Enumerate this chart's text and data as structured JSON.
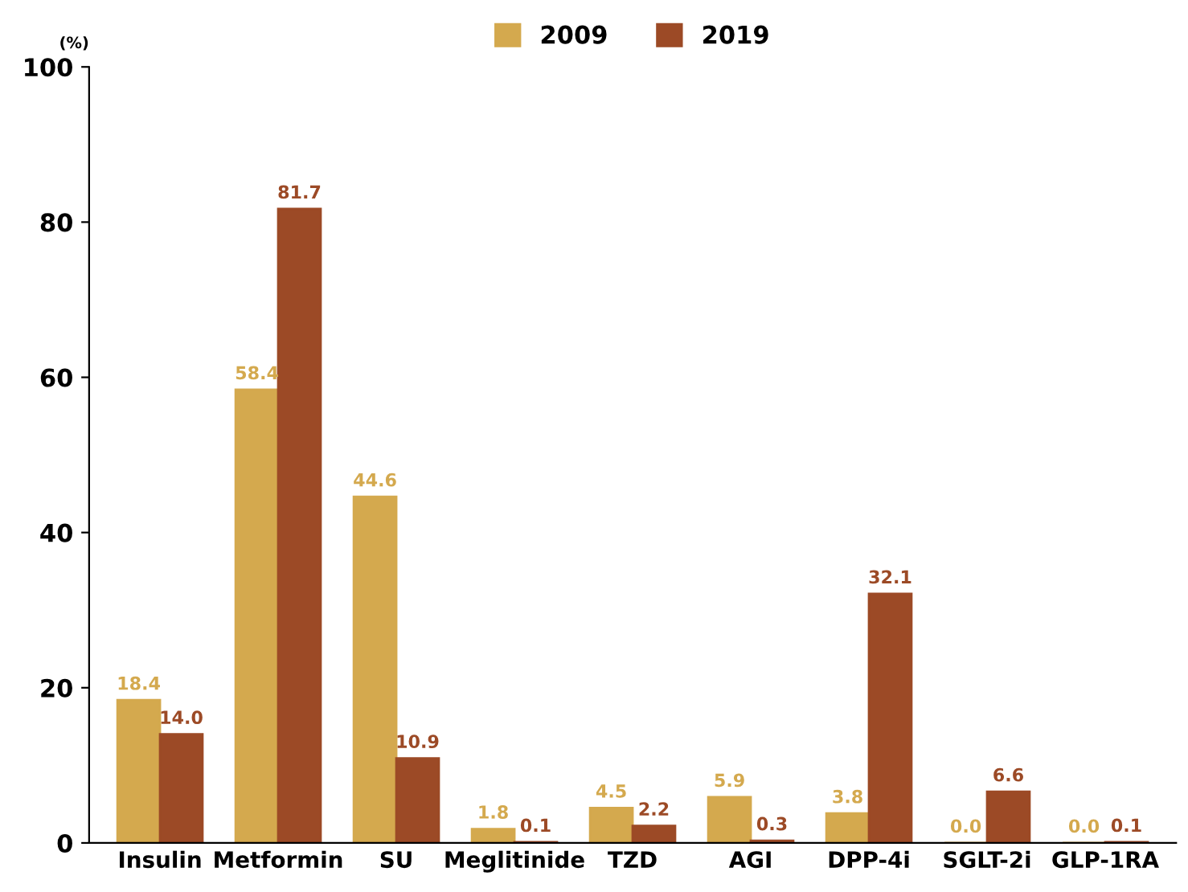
{
  "chart_data": {
    "type": "bar",
    "ylabel": "(%)",
    "categories": [
      "Insulin",
      "Metformin",
      "SU",
      "Meglitinide",
      "TZD",
      "AGI",
      "DPP-4i",
      "SGLT-2i",
      "GLP-1RA"
    ],
    "series": [
      {
        "name": "2009",
        "color": "#d4a94e",
        "values": [
          18.4,
          58.4,
          44.6,
          1.8,
          4.5,
          5.9,
          3.8,
          0.0,
          0.0
        ],
        "value_labels": [
          "18.4",
          "58.4",
          "44.6",
          "1.8",
          "4.5",
          "5.9",
          "3.8",
          "0.0",
          "0.0"
        ]
      },
      {
        "name": "2019",
        "color": "#9c4a26",
        "values": [
          14.0,
          81.7,
          10.9,
          0.1,
          2.2,
          0.3,
          32.1,
          6.6,
          0.1
        ],
        "value_labels": [
          "14.0",
          "81.7",
          "10.9",
          "0.1",
          "2.2",
          "0.3",
          "32.1",
          "6.6",
          "0.1"
        ]
      }
    ],
    "ylim": [
      0,
      100
    ],
    "yticks": [
      0,
      20,
      40,
      60,
      80,
      100
    ],
    "grid": false,
    "legend": "top",
    "data_labels": true
  }
}
